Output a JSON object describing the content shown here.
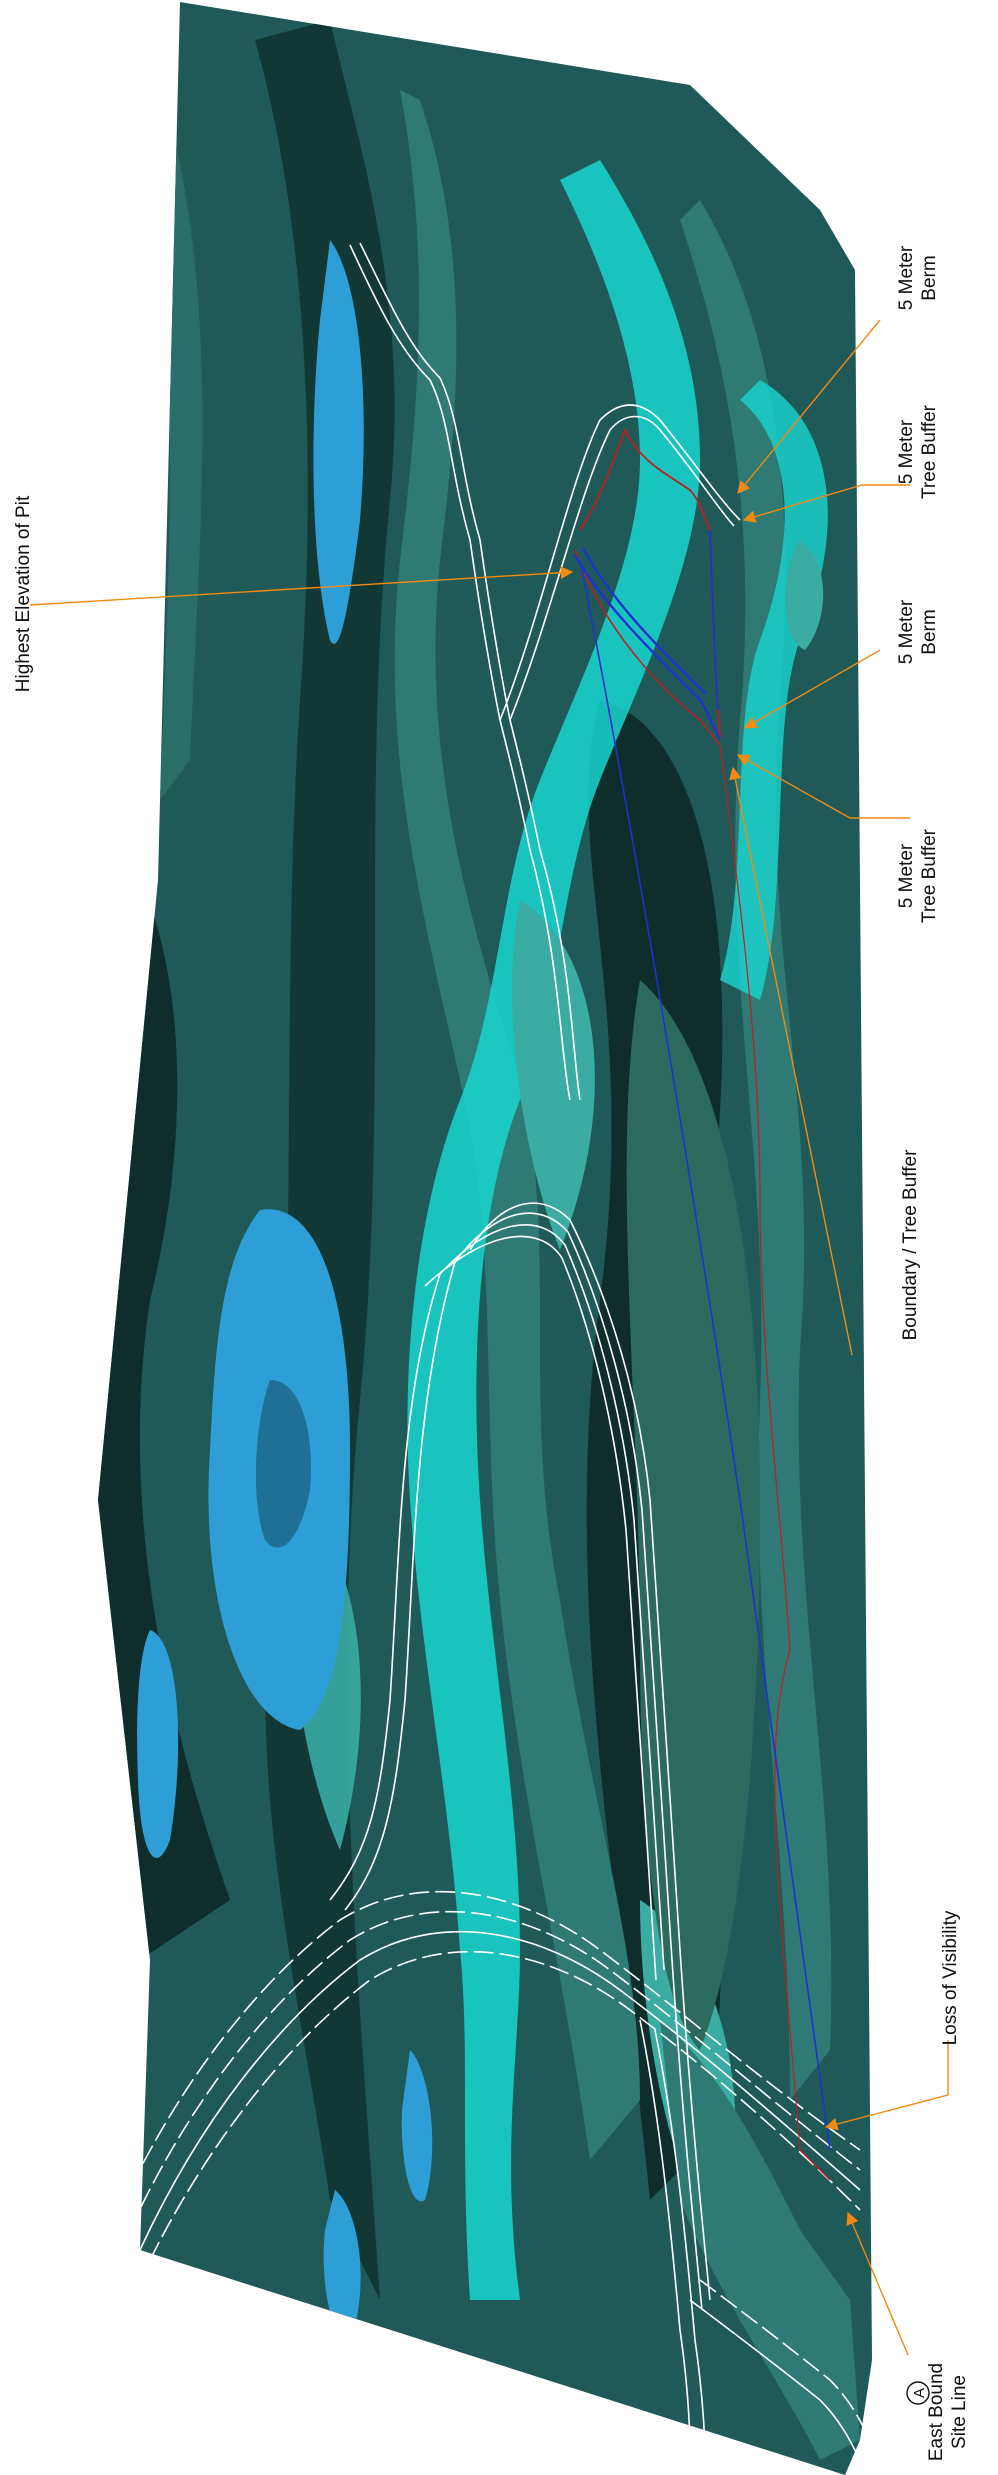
{
  "annotations": {
    "highest_elevation": "Highest Elevation of Pit",
    "berm_top": {
      "line1": "5 Meter",
      "line2": "Berm"
    },
    "tree_buffer_top": {
      "line1": "5 Meter",
      "line2": "Tree Buffer"
    },
    "berm_mid": {
      "line1": "5 Meter",
      "line2": "Berm"
    },
    "tree_buffer_mid": {
      "line1": "5 Meter",
      "line2": "Tree Buffer"
    },
    "boundary_tree_buffer": "Boundary / Tree Buffer",
    "loss_of_visibility": "Loss of Visibility",
    "section_marker": "A",
    "east_bound": {
      "line1": "East Bound",
      "line2": "Site Line"
    }
  },
  "colors": {
    "terrain_base": "#1f5a58",
    "terrain_dark": "#0f2d2b",
    "terrain_mid": "#2f7a74",
    "terrain_light": "#3aaca4",
    "terrain_cyan": "#19d6d0",
    "water_blue": "#2e9fd6",
    "road_white": "#ffffff",
    "sightline_blue": "#1d33d1",
    "pit_red": "#c01e1e",
    "leader_orange": "#f08a12"
  }
}
